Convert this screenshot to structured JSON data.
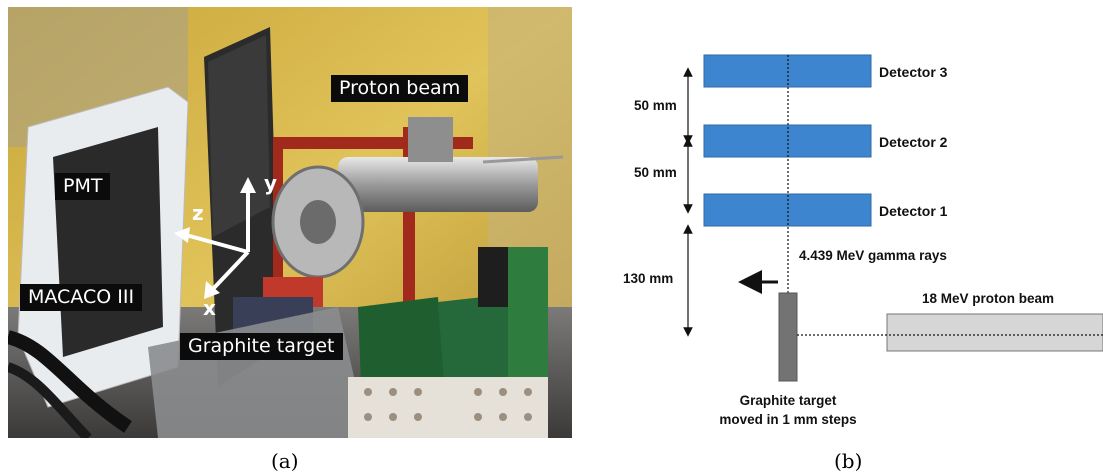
{
  "panel_a": {
    "labels": {
      "proton_beam": "Proton beam",
      "pmt": "PMT",
      "macaco": "MACACO III",
      "graphite_target": "Graphite target"
    },
    "axes": {
      "x": "x",
      "y": "y",
      "z": "z"
    },
    "caption": "(a)"
  },
  "panel_b": {
    "detectors": [
      "Detector 3",
      "Detector 2",
      "Detector 1"
    ],
    "distances": [
      "50 mm",
      "50 mm",
      "130 mm"
    ],
    "gamma_label": "4.439 MeV gamma rays",
    "beam_label": "18 MeV proton beam",
    "target_label_line1": "Graphite target",
    "target_label_line2": "moved in 1 mm steps",
    "caption": "(b)"
  },
  "colors": {
    "detector_fill": "#3d86cf",
    "target_fill": "#737373",
    "beam_fill": "#d6d6d6"
  }
}
